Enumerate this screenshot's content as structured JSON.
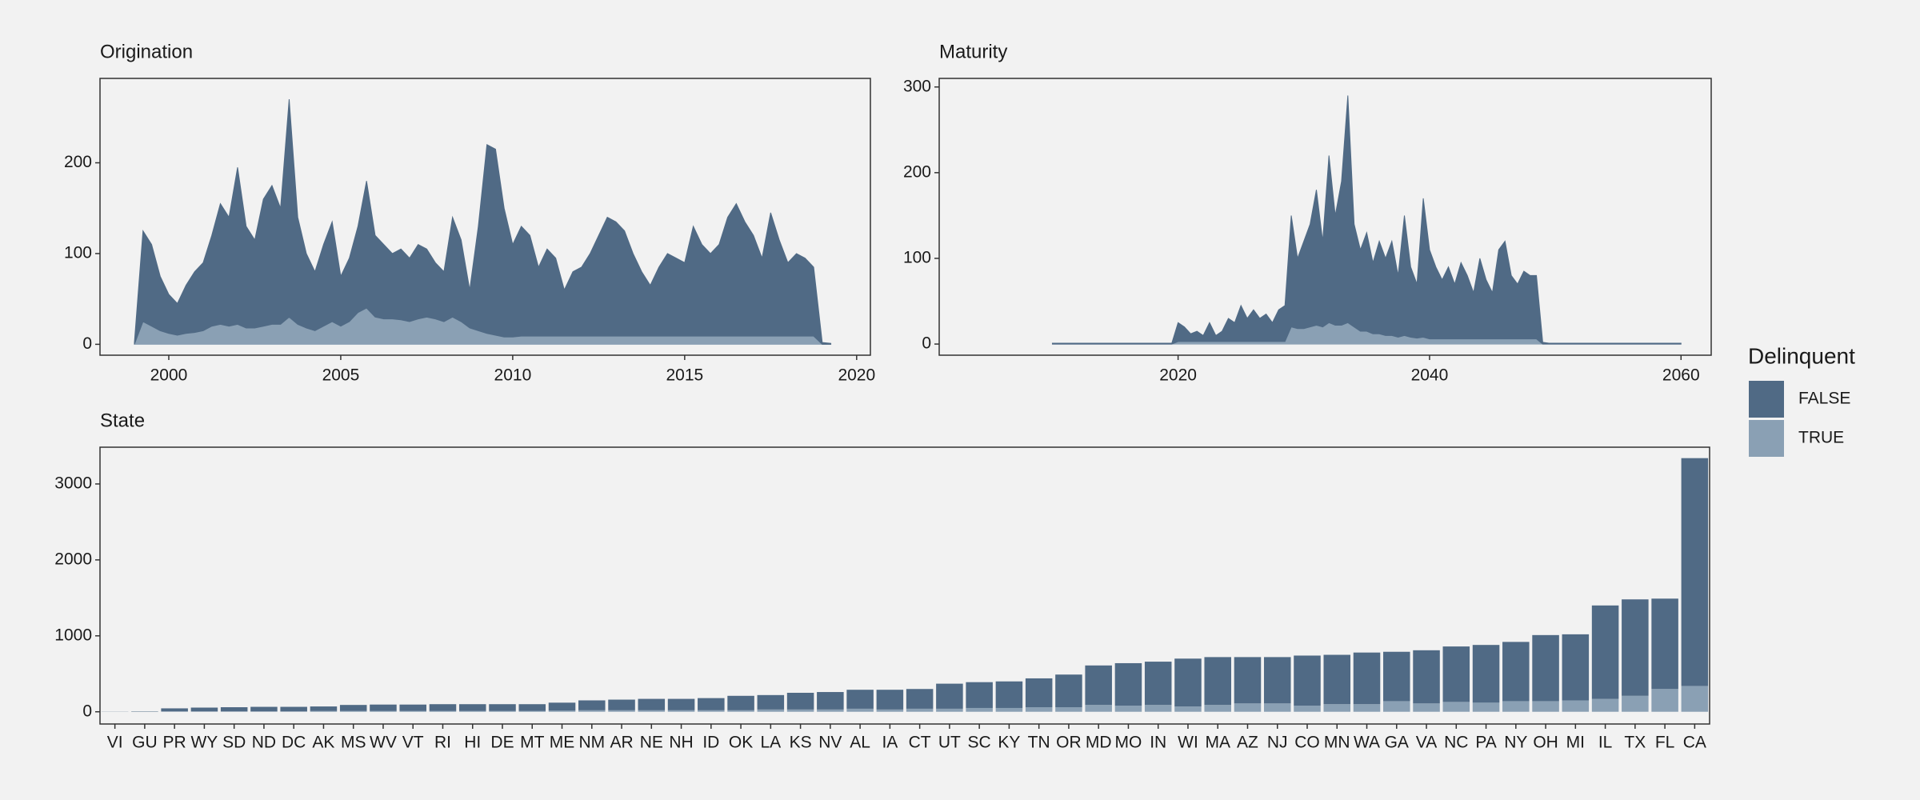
{
  "chart_data": [
    {
      "type": "area",
      "title": "Origination",
      "x": [
        1999,
        1999.25,
        1999.5,
        1999.75,
        2000,
        2000.25,
        2000.5,
        2000.75,
        2001,
        2001.25,
        2001.5,
        2001.75,
        2002,
        2002.25,
        2002.5,
        2002.75,
        2003,
        2003.25,
        2003.5,
        2003.75,
        2004,
        2004.25,
        2004.5,
        2004.75,
        2005,
        2005.25,
        2005.5,
        2005.75,
        2006,
        2006.25,
        2006.5,
        2006.75,
        2007,
        2007.25,
        2007.5,
        2007.75,
        2008,
        2008.25,
        2008.5,
        2008.75,
        2009,
        2009.25,
        2009.5,
        2009.75,
        2010,
        2010.25,
        2010.5,
        2010.75,
        2011,
        2011.25,
        2011.5,
        2011.75,
        2012,
        2012.25,
        2012.5,
        2012.75,
        2013,
        2013.25,
        2013.5,
        2013.75,
        2014,
        2014.25,
        2014.5,
        2014.75,
        2015,
        2015.25,
        2015.5,
        2015.75,
        2016,
        2016.25,
        2016.5,
        2016.75,
        2017,
        2017.25,
        2017.5,
        2017.75,
        2018,
        2018.25,
        2018.5,
        2018.75,
        2019,
        2019.25
      ],
      "series": [
        {
          "name": "FALSE",
          "color": "#506a85",
          "values": [
            2,
            100,
            90,
            60,
            43,
            35,
            53,
            67,
            75,
            100,
            133,
            120,
            173,
            112,
            97,
            140,
            153,
            128,
            240,
            118,
            82,
            65,
            90,
            110,
            55,
            70,
            95,
            140,
            90,
            82,
            72,
            78,
            70,
            82,
            75,
            62,
            55,
            110,
            90,
            42,
            115,
            208,
            205,
            142,
            102,
            121,
            111,
            76,
            96,
            86,
            51,
            71,
            76,
            91,
            111,
            131,
            126,
            116,
            91,
            71,
            56,
            76,
            91,
            86,
            81,
            121,
            101,
            91,
            101,
            131,
            146,
            126,
            111,
            86,
            136,
            106,
            81,
            91,
            86,
            76,
            2,
            1
          ]
        },
        {
          "name": "TRUE",
          "color": "#8aa0b4",
          "values": [
            0,
            25,
            20,
            15,
            12,
            10,
            12,
            13,
            15,
            20,
            22,
            20,
            22,
            18,
            18,
            20,
            22,
            22,
            30,
            22,
            18,
            15,
            20,
            25,
            20,
            25,
            35,
            40,
            30,
            28,
            28,
            27,
            25,
            28,
            30,
            28,
            25,
            30,
            25,
            18,
            15,
            12,
            10,
            8,
            8,
            9,
            9,
            9,
            9,
            9,
            9,
            9,
            9,
            9,
            9,
            9,
            9,
            9,
            9,
            9,
            9,
            9,
            9,
            9,
            9,
            9,
            9,
            9,
            9,
            9,
            9,
            9,
            9,
            9,
            9,
            9,
            9,
            9,
            9,
            9,
            0,
            0
          ]
        }
      ],
      "xlim": [
        1998.0,
        2020.4
      ],
      "xticks": [
        2000,
        2005,
        2010,
        2015,
        2020
      ],
      "ylim": [
        -12,
        293
      ],
      "yticks": [
        0,
        100,
        200
      ]
    },
    {
      "type": "area",
      "title": "Maturity",
      "x": [
        2010,
        2010.5,
        2011,
        2011.5,
        2012,
        2012.5,
        2013,
        2013.5,
        2014,
        2014.5,
        2015,
        2015.5,
        2016,
        2016.5,
        2017,
        2017.5,
        2018,
        2018.5,
        2019,
        2019.5,
        2020,
        2020.5,
        2021,
        2021.5,
        2022,
        2022.5,
        2023,
        2023.5,
        2024,
        2024.5,
        2025,
        2025.5,
        2026,
        2026.5,
        2027,
        2027.5,
        2028,
        2028.5,
        2029,
        2029.5,
        2030,
        2030.5,
        2031,
        2031.5,
        2032,
        2032.5,
        2033,
        2033.5,
        2034,
        2034.5,
        2035,
        2035.5,
        2036,
        2036.5,
        2037,
        2037.5,
        2038,
        2038.5,
        2039,
        2039.5,
        2040,
        2040.5,
        2041,
        2041.5,
        2042,
        2042.5,
        2043,
        2043.5,
        2044,
        2044.5,
        2045,
        2045.5,
        2046,
        2046.5,
        2047,
        2047.5,
        2048,
        2048.5,
        2049,
        2049.5,
        2050,
        2050.5,
        2051,
        2051.5,
        2052,
        2052.5,
        2053,
        2053.5,
        2054,
        2054.5,
        2055,
        2055.5,
        2056,
        2056.5,
        2057,
        2057.5,
        2058,
        2058.5,
        2059,
        2059.5,
        2060
      ],
      "series": [
        {
          "name": "FALSE",
          "color": "#506a85",
          "values": [
            1,
            1,
            1,
            1,
            1,
            1,
            1,
            1,
            1,
            1,
            1,
            1,
            1,
            1,
            1,
            1,
            1,
            1,
            1,
            1,
            22,
            17,
            9,
            12,
            7,
            22,
            7,
            12,
            27,
            22,
            42,
            27,
            37,
            27,
            32,
            22,
            37,
            42,
            130,
            82,
            102,
            120,
            158,
            100,
            195,
            128,
            168,
            265,
            120,
            95,
            115,
            83,
            108,
            90,
            110,
            72,
            140,
            82,
            63,
            162,
            104,
            84,
            69,
            84,
            64,
            89,
            74,
            54,
            94,
            69,
            54,
            104,
            114,
            74,
            64,
            79,
            74,
            74,
            2,
            1,
            1,
            1,
            1,
            1,
            1,
            1,
            1,
            1,
            1,
            1,
            1,
            1,
            1,
            1,
            1,
            1,
            1,
            1,
            1,
            1,
            1
          ]
        },
        {
          "name": "TRUE",
          "color": "#8aa0b4",
          "values": [
            0,
            0,
            0,
            0,
            0,
            0,
            0,
            0,
            0,
            0,
            0,
            0,
            0,
            0,
            0,
            0,
            0,
            0,
            0,
            0,
            3,
            3,
            3,
            3,
            3,
            3,
            3,
            3,
            3,
            3,
            3,
            3,
            3,
            3,
            3,
            3,
            3,
            3,
            20,
            18,
            18,
            20,
            22,
            20,
            25,
            22,
            22,
            25,
            20,
            15,
            15,
            12,
            12,
            10,
            10,
            8,
            10,
            8,
            7,
            8,
            6,
            6,
            6,
            6,
            6,
            6,
            6,
            6,
            6,
            6,
            6,
            6,
            6,
            6,
            6,
            6,
            6,
            6,
            0,
            0,
            0,
            0,
            0,
            0,
            0,
            0,
            0,
            0,
            0,
            0,
            0,
            0,
            0,
            0,
            0,
            0,
            0,
            0,
            0,
            0,
            0
          ]
        }
      ],
      "xlim": [
        2001.0,
        2062.4
      ],
      "xticks": [
        2020,
        2040,
        2060
      ],
      "ylim": [
        -13,
        310
      ],
      "yticks": [
        0,
        100,
        200,
        300
      ]
    },
    {
      "type": "bar",
      "title": "State",
      "categories": [
        "VI",
        "GU",
        "PR",
        "WY",
        "SD",
        "ND",
        "DC",
        "AK",
        "MS",
        "WV",
        "VT",
        "RI",
        "HI",
        "DE",
        "MT",
        "ME",
        "NM",
        "AR",
        "NE",
        "NH",
        "ID",
        "OK",
        "LA",
        "KS",
        "NV",
        "AL",
        "IA",
        "CT",
        "UT",
        "SC",
        "KY",
        "TN",
        "OR",
        "MD",
        "MO",
        "IN",
        "WI",
        "MA",
        "AZ",
        "NJ",
        "CO",
        "MN",
        "WA",
        "GA",
        "VA",
        "NC",
        "PA",
        "NY",
        "OH",
        "MI",
        "IL",
        "TX",
        "FL",
        "CA"
      ],
      "series": [
        {
          "name": "FALSE",
          "color": "#506a85",
          "values": [
            2,
            5,
            40,
            50,
            55,
            60,
            60,
            60,
            80,
            85,
            85,
            90,
            90,
            90,
            90,
            105,
            130,
            140,
            150,
            150,
            160,
            190,
            190,
            220,
            230,
            250,
            260,
            260,
            330,
            340,
            350,
            380,
            430,
            520,
            560,
            570,
            630,
            630,
            610,
            610,
            660,
            650,
            680,
            650,
            700,
            730,
            760,
            780,
            870,
            870,
            1230,
            1270,
            1190,
            3000
          ]
        },
        {
          "name": "TRUE",
          "color": "#8aa0b4",
          "values": [
            0,
            0,
            5,
            5,
            5,
            5,
            5,
            10,
            10,
            10,
            10,
            10,
            10,
            10,
            10,
            15,
            20,
            20,
            20,
            20,
            20,
            20,
            30,
            30,
            30,
            40,
            30,
            40,
            40,
            50,
            50,
            60,
            60,
            90,
            80,
            90,
            70,
            90,
            110,
            110,
            80,
            100,
            100,
            140,
            110,
            130,
            120,
            140,
            140,
            150,
            170,
            210,
            300,
            340
          ]
        }
      ],
      "ylim": [
        -161,
        3484
      ],
      "yticks": [
        0,
        1000,
        2000,
        3000
      ]
    }
  ],
  "legend": {
    "title": "Delinquent"
  }
}
